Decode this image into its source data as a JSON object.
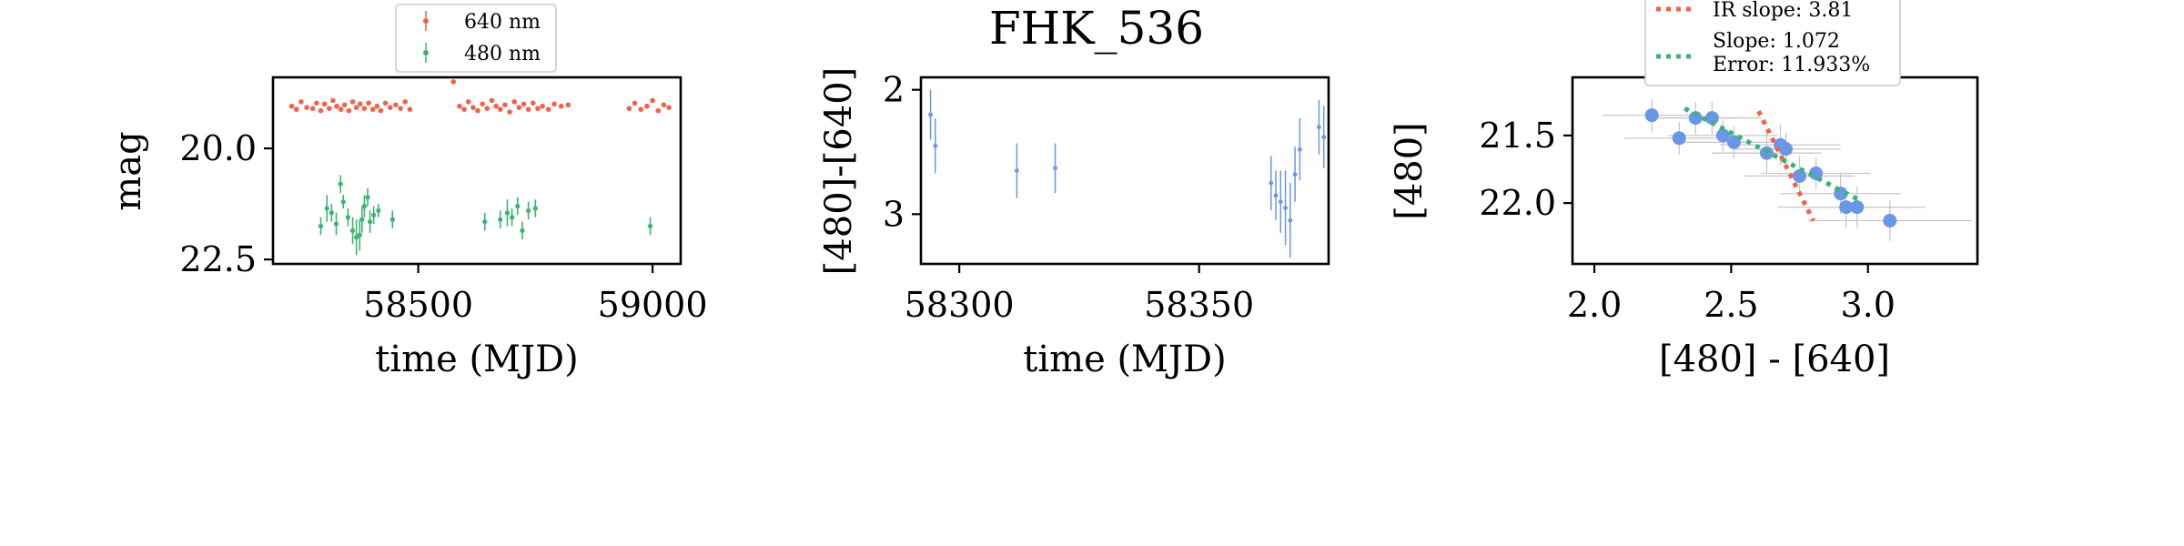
{
  "title": "FHK_536",
  "colors": {
    "red": "#f0634a",
    "green": "#3cb371",
    "blue": "#6a96e8",
    "grey": "#c8c8c8"
  },
  "chart_data": [
    {
      "type": "scatter",
      "xlabel": "time (MJD)",
      "ylabel": "mag",
      "xlim": [
        58190,
        59060
      ],
      "ylim": [
        22.6,
        18.4
      ],
      "xticks": [
        {
          "v": 58500,
          "label": "58500"
        },
        {
          "v": 59000,
          "label": "59000"
        }
      ],
      "yticks": [
        {
          "v": 20.0,
          "label": "20.0"
        },
        {
          "v": 22.5,
          "label": "22.5"
        }
      ],
      "legend": {
        "position": "top-center",
        "entries": [
          "640 nm",
          "480 nm"
        ]
      },
      "series": [
        {
          "name": "640 nm",
          "color": "red",
          "points": [
            [
              58230,
              19.05
            ],
            [
              58240,
              19.12
            ],
            [
              58250,
              18.95
            ],
            [
              58262,
              19.08
            ],
            [
              58275,
              19.1
            ],
            [
              58283,
              18.98
            ],
            [
              58292,
              19.15
            ],
            [
              58300,
              19.0
            ],
            [
              58310,
              19.1
            ],
            [
              58318,
              18.92
            ],
            [
              58326,
              19.05
            ],
            [
              58335,
              19.12
            ],
            [
              58343,
              19.02
            ],
            [
              58352,
              19.15
            ],
            [
              58360,
              18.95
            ],
            [
              58368,
              19.08
            ],
            [
              58376,
              19.0
            ],
            [
              58385,
              19.1
            ],
            [
              58394,
              18.98
            ],
            [
              58403,
              19.12
            ],
            [
              58412,
              19.05
            ],
            [
              58420,
              19.15
            ],
            [
              58430,
              18.98
            ],
            [
              58440,
              19.08
            ],
            [
              58452,
              19.02
            ],
            [
              58462,
              19.1
            ],
            [
              58472,
              18.95
            ],
            [
              58482,
              19.12
            ],
            [
              58575,
              18.5
            ],
            [
              58588,
              19.05
            ],
            [
              58598,
              19.12
            ],
            [
              58607,
              18.95
            ],
            [
              58617,
              19.08
            ],
            [
              58627,
              19.15
            ],
            [
              58637,
              19.0
            ],
            [
              58647,
              19.1
            ],
            [
              58657,
              18.92
            ],
            [
              58666,
              19.05
            ],
            [
              58675,
              19.12
            ],
            [
              58685,
              19.02
            ],
            [
              58695,
              19.18
            ],
            [
              58705,
              18.95
            ],
            [
              58715,
              19.08
            ],
            [
              58725,
              19.0
            ],
            [
              58735,
              19.12
            ],
            [
              58745,
              18.98
            ],
            [
              58755,
              19.1
            ],
            [
              58765,
              19.05
            ],
            [
              58778,
              19.12
            ],
            [
              58790,
              19.0
            ],
            [
              58805,
              19.05
            ],
            [
              58820,
              19.02
            ],
            [
              58950,
              19.1
            ],
            [
              58962,
              18.98
            ],
            [
              58975,
              19.12
            ],
            [
              58988,
              19.05
            ],
            [
              59000,
              18.92
            ],
            [
              59012,
              19.15
            ],
            [
              59024,
              19.02
            ],
            [
              59035,
              19.08
            ]
          ]
        },
        {
          "name": "480 nm",
          "color": "green",
          "points": [
            {
              "x": 58292,
              "y": 21.75,
              "e": 0.2
            },
            {
              "x": 58305,
              "y": 21.35,
              "e": 0.3
            },
            {
              "x": 58315,
              "y": 21.45,
              "e": 0.2
            },
            {
              "x": 58325,
              "y": 21.7,
              "e": 0.25
            },
            {
              "x": 58334,
              "y": 20.8,
              "e": 0.2
            },
            {
              "x": 58340,
              "y": 21.2,
              "e": 0.15
            },
            {
              "x": 58350,
              "y": 21.55,
              "e": 0.2
            },
            {
              "x": 58360,
              "y": 21.85,
              "e": 0.3
            },
            {
              "x": 58368,
              "y": 22.0,
              "e": 0.4
            },
            {
              "x": 58375,
              "y": 21.95,
              "e": 0.35
            },
            {
              "x": 58380,
              "y": 21.6,
              "e": 0.3
            },
            {
              "x": 58385,
              "y": 21.3,
              "e": 0.25
            },
            {
              "x": 58392,
              "y": 21.1,
              "e": 0.2
            },
            {
              "x": 58397,
              "y": 21.65,
              "e": 0.25
            },
            {
              "x": 58405,
              "y": 21.5,
              "e": 0.2
            },
            {
              "x": 58415,
              "y": 21.4,
              "e": 0.15
            },
            {
              "x": 58445,
              "y": 21.6,
              "e": 0.2
            },
            {
              "x": 58642,
              "y": 21.65,
              "e": 0.2
            },
            {
              "x": 58675,
              "y": 21.6,
              "e": 0.2
            },
            {
              "x": 58690,
              "y": 21.45,
              "e": 0.3
            },
            {
              "x": 58700,
              "y": 21.55,
              "e": 0.2
            },
            {
              "x": 58712,
              "y": 21.3,
              "e": 0.2
            },
            {
              "x": 58722,
              "y": 21.85,
              "e": 0.2
            },
            {
              "x": 58735,
              "y": 21.4,
              "e": 0.2
            },
            {
              "x": 58750,
              "y": 21.35,
              "e": 0.2
            },
            {
              "x": 58995,
              "y": 21.75,
              "e": 0.2
            }
          ]
        }
      ]
    },
    {
      "type": "scatter",
      "xlabel": "time (MJD)",
      "ylabel": "[480]-[640]",
      "xlim": [
        58292,
        58377
      ],
      "ylim": [
        3.4,
        1.9
      ],
      "xticks": [
        {
          "v": 58300,
          "label": "58300"
        },
        {
          "v": 58350,
          "label": "58350"
        }
      ],
      "yticks": [
        {
          "v": 2,
          "label": "2"
        },
        {
          "v": 3,
          "label": "3"
        }
      ],
      "series": [
        {
          "color": "blue",
          "points": [
            {
              "x": 58294,
              "y": 2.2,
              "e": 0.2
            },
            {
              "x": 58295,
              "y": 2.45,
              "e": 0.22
            },
            {
              "x": 58312,
              "y": 2.65,
              "e": 0.22
            },
            {
              "x": 58320,
              "y": 2.63,
              "e": 0.2
            },
            {
              "x": 58365,
              "y": 2.75,
              "e": 0.22
            },
            {
              "x": 58366,
              "y": 2.85,
              "e": 0.2
            },
            {
              "x": 58367,
              "y": 2.9,
              "e": 0.25
            },
            {
              "x": 58368,
              "y": 2.95,
              "e": 0.3
            },
            {
              "x": 58369,
              "y": 3.05,
              "e": 0.3
            },
            {
              "x": 58370,
              "y": 2.68,
              "e": 0.22
            },
            {
              "x": 58371,
              "y": 2.48,
              "e": 0.25
            },
            {
              "x": 58375,
              "y": 2.3,
              "e": 0.22
            },
            {
              "x": 58376,
              "y": 2.38,
              "e": 0.25
            }
          ]
        }
      ]
    },
    {
      "type": "scatter",
      "xlabel": "[480] - [640]",
      "ylabel": "[480]",
      "xlim": [
        1.92,
        3.4
      ],
      "ylim": [
        22.45,
        21.07
      ],
      "xticks": [
        {
          "v": 2.0,
          "label": "2.0"
        },
        {
          "v": 2.5,
          "label": "2.5"
        },
        {
          "v": 3.0,
          "label": "3.0"
        }
      ],
      "yticks": [
        {
          "v": 21.5,
          "label": "21.5"
        },
        {
          "v": 22.0,
          "label": "22.0"
        }
      ],
      "legend": {
        "position": "top-center",
        "entries": [
          "IR slope: 3.81",
          "Slope: 1.072",
          "Error: 11.933%"
        ]
      },
      "series": [
        {
          "color": "blue",
          "points": [
            {
              "x": 2.21,
              "y": 21.35,
              "ex": 0.18,
              "ey": 0.12
            },
            {
              "x": 2.31,
              "y": 21.52,
              "ex": 0.2,
              "ey": 0.12
            },
            {
              "x": 2.37,
              "y": 21.37,
              "ex": 0.15,
              "ey": 0.12
            },
            {
              "x": 2.43,
              "y": 21.37,
              "ex": 0.18,
              "ey": 0.12
            },
            {
              "x": 2.47,
              "y": 21.5,
              "ex": 0.2,
              "ey": 0.12
            },
            {
              "x": 2.51,
              "y": 21.55,
              "ex": 0.2,
              "ey": 0.12
            },
            {
              "x": 2.63,
              "y": 21.63,
              "ex": 0.2,
              "ey": 0.15
            },
            {
              "x": 2.68,
              "y": 21.57,
              "ex": 0.22,
              "ey": 0.15
            },
            {
              "x": 2.7,
              "y": 21.6,
              "ex": 0.2,
              "ey": 0.12
            },
            {
              "x": 2.75,
              "y": 21.8,
              "ex": 0.2,
              "ey": 0.15
            },
            {
              "x": 2.81,
              "y": 21.78,
              "ex": 0.2,
              "ey": 0.12
            },
            {
              "x": 2.9,
              "y": 21.93,
              "ex": 0.22,
              "ey": 0.15
            },
            {
              "x": 2.92,
              "y": 22.03,
              "ex": 0.25,
              "ey": 0.15
            },
            {
              "x": 2.96,
              "y": 22.03,
              "ex": 0.25,
              "ey": 0.15
            },
            {
              "x": 3.08,
              "y": 22.13,
              "ex": 0.3,
              "ey": 0.15
            }
          ]
        }
      ],
      "lines": [
        {
          "name": "IR slope",
          "color": "red",
          "from": [
            2.6,
            21.32
          ],
          "to": [
            2.8,
            22.13
          ]
        },
        {
          "name": "Slope",
          "color": "green",
          "from": [
            2.33,
            21.3
          ],
          "to": [
            2.97,
            21.98
          ]
        }
      ]
    }
  ]
}
